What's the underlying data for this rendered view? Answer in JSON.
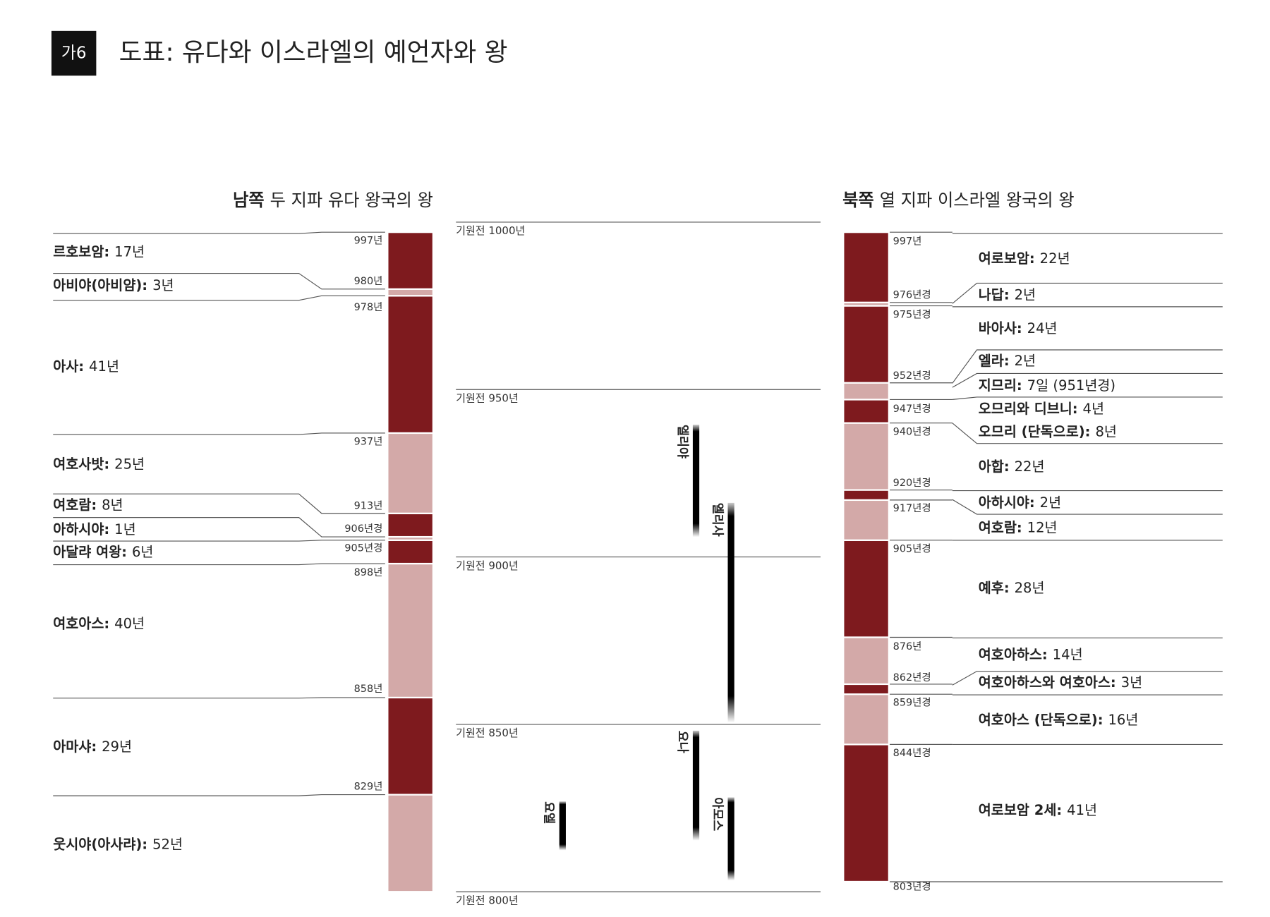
{
  "header": {
    "badge": "가6",
    "title": "도표: 유다와 이스라엘의 예언자와 왕"
  },
  "judah": {
    "heading": {
      "bold": "남쪽",
      "text": "두 지파 유다 왕국의 왕"
    },
    "kings": [
      {
        "name": "르호보암:",
        "reign": "17년",
        "year": "997년",
        "color": "#7e1a1e"
      },
      {
        "name": "아비야(아비얌):",
        "reign": "3년",
        "year": "980년",
        "color": "#d3a9a8"
      },
      {
        "name": "아사:",
        "reign": "41년",
        "year": "978년",
        "color": "#7e1a1e"
      },
      {
        "name": "여호사밧:",
        "reign": "25년",
        "year": "937년",
        "color": "#d3a9a8"
      },
      {
        "name": "여호람:",
        "reign": "8년",
        "year": "913년",
        "color": "#7e1a1e"
      },
      {
        "name": "아하시야:",
        "reign": "1년",
        "year": "906년경",
        "color": "#d3a9a8"
      },
      {
        "name": "아달랴 여왕:",
        "reign": "6년",
        "year": "905년경",
        "color": "#7e1a1e"
      },
      {
        "name": "여호아스:",
        "reign": "40년",
        "year": "898년",
        "color": "#d3a9a8"
      },
      {
        "name": "아마샤:",
        "reign": "29년",
        "year": "858년",
        "color": "#7e1a1e"
      },
      {
        "name": "웃시야(아사랴):",
        "reign": "52년",
        "year": "829년",
        "color": "#d3a9a8"
      }
    ]
  },
  "timeline": {
    "ticks": [
      "기원전 1000년",
      "기원전 950년",
      "기원전 900년",
      "기원전 850년",
      "기원전 800년"
    ],
    "prophets": [
      "엘리야",
      "엘리사",
      "요나",
      "아모스",
      "요엘"
    ],
    "color": "#b9646b"
  },
  "israel": {
    "heading": {
      "bold": "북쪽",
      "text": "열 지파 이스라엘 왕국의 왕"
    },
    "periods": [
      {
        "year": "997년",
        "color": "#7e1a1e"
      },
      {
        "year": "976년경",
        "color": "#d3a9a8"
      },
      {
        "year": "975년경",
        "color": "#7e1a1e"
      },
      {
        "year": "952년경",
        "color": "#d3a9a8"
      },
      {
        "year": "947년경",
        "color": "#7e1a1e"
      },
      {
        "year": "940년경",
        "color": "#d3a9a8"
      },
      {
        "year": "920년경",
        "color": "#7e1a1e"
      },
      {
        "year": "917년경",
        "color": "#d3a9a8"
      },
      {
        "year": "905년경",
        "color": "#7e1a1e"
      },
      {
        "year": "876년",
        "color": "#d3a9a8"
      },
      {
        "year": "862년경",
        "color": "#7e1a1e"
      },
      {
        "year": "859년경",
        "color": "#d3a9a8"
      },
      {
        "year": "844년경",
        "color": "#7e1a1e"
      },
      {
        "year": "803년경"
      }
    ],
    "kings": [
      {
        "name": "여로보암:",
        "reign": "22년"
      },
      {
        "name": "나답:",
        "reign": "2년"
      },
      {
        "name": "바아사:",
        "reign": "24년"
      },
      {
        "name": "엘라:",
        "reign": "2년"
      },
      {
        "name": "지므리:",
        "reign": "7일 (951년경)"
      },
      {
        "name": "오므리와 디브니:",
        "reign": "4년"
      },
      {
        "name": "오므리 (단독으로):",
        "reign": "8년"
      },
      {
        "name": "아합:",
        "reign": "22년"
      },
      {
        "name": "아하시야:",
        "reign": "2년"
      },
      {
        "name": "여호람:",
        "reign": "12년"
      },
      {
        "name": "예후:",
        "reign": "28년"
      },
      {
        "name": "여호아하스:",
        "reign": "14년"
      },
      {
        "name": "여호아하스와 여호아스:",
        "reign": "3년"
      },
      {
        "name": "여호아스 (단독으로):",
        "reign": "16년"
      },
      {
        "name": "여로보암 2세:",
        "reign": "41년"
      }
    ]
  }
}
